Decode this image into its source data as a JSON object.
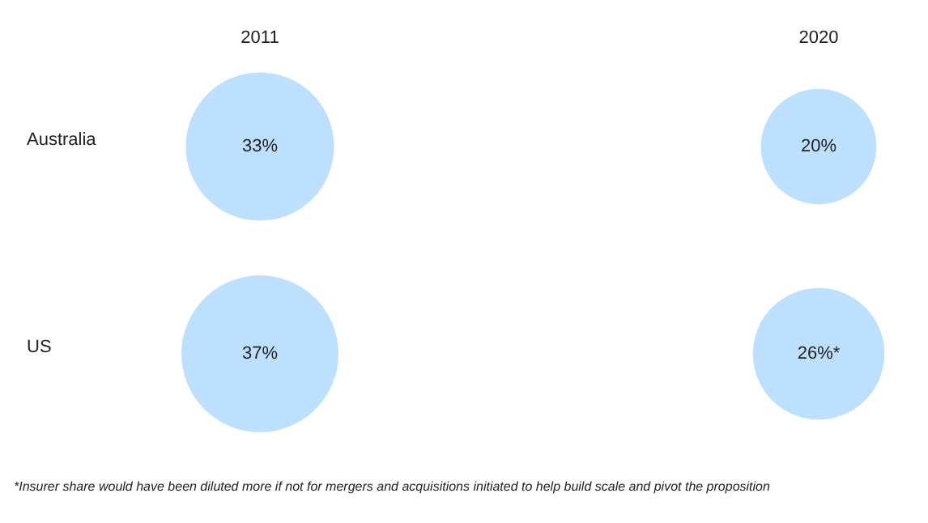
{
  "chart_data": {
    "type": "other",
    "categories": [
      "2011",
      "2020"
    ],
    "y_categories": [
      "Australia",
      "US"
    ],
    "series": [
      {
        "color": "#bde0fe",
        "values": [
          33,
          20
        ],
        "value_labels": [
          "33%",
          "20%"
        ]
      },
      {
        "color": "#bde0fe",
        "values": [
          37,
          26
        ],
        "value_labels": [
          "37%",
          "26%*"
        ]
      }
    ],
    "annotations": [
      "*Insurer share would have been diluted more if not for mergers and acquisitions initiated to help build scale and pivot the proposition"
    ]
  }
}
